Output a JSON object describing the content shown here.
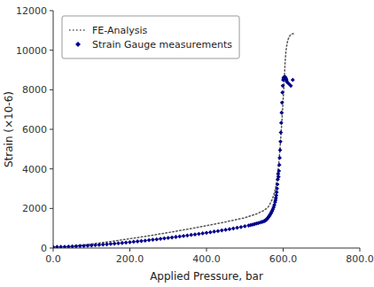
{
  "chart_data": {
    "type": "line",
    "xlabel": "Applied Pressure, bar",
    "ylabel": "Strain (×10-6)",
    "xlim": [
      0.0,
      800.0
    ],
    "ylim": [
      0,
      12000
    ],
    "xticks": [
      {
        "value": 0.0,
        "label": "0.0"
      },
      {
        "value": 200.0,
        "label": "200.0"
      },
      {
        "value": 400.0,
        "label": "400.0"
      },
      {
        "value": 600.0,
        "label": "600.0"
      },
      {
        "value": 800.0,
        "label": "800.0"
      }
    ],
    "yticks": [
      0,
      2000,
      4000,
      6000,
      8000,
      10000,
      12000
    ],
    "grid": false,
    "legend": "upper left",
    "series": [
      {
        "name": "FE-Analysis",
        "type": "line",
        "line_style": "dotted",
        "color": "#555555",
        "x": [
          0,
          50,
          100,
          150,
          200,
          250,
          300,
          350,
          400,
          450,
          500,
          530,
          550,
          560,
          565,
          570,
          575,
          580,
          583,
          585,
          587,
          589,
          591,
          593,
          595,
          597,
          599,
          601,
          603,
          605,
          607,
          609,
          611,
          613,
          615,
          617,
          619,
          621,
          623,
          625,
          627,
          628,
          629,
          630
        ],
        "values": [
          50,
          90,
          200,
          330,
          470,
          620,
          780,
          950,
          1130,
          1320,
          1530,
          1720,
          1900,
          2050,
          2200,
          2400,
          2650,
          3000,
          3350,
          3650,
          4000,
          4400,
          4850,
          5350,
          5900,
          6500,
          7150,
          7850,
          8580,
          9350,
          9900,
          10200,
          10400,
          10550,
          10650,
          10720,
          10770,
          10800,
          10820,
          10830,
          10835,
          10838,
          10839,
          10840
        ]
      },
      {
        "name": "Strain Gauge measurements",
        "type": "scatter",
        "marker": "diamond",
        "color": "#00008B",
        "x": [
          0,
          10,
          20,
          30,
          40,
          50,
          60,
          70,
          80,
          90,
          100,
          110,
          120,
          130,
          140,
          150,
          160,
          170,
          180,
          190,
          200,
          210,
          220,
          230,
          240,
          250,
          260,
          270,
          280,
          290,
          300,
          310,
          320,
          330,
          340,
          350,
          360,
          370,
          380,
          390,
          400,
          410,
          420,
          430,
          440,
          450,
          460,
          470,
          480,
          490,
          500,
          510,
          515,
          520,
          525,
          530,
          535,
          540,
          545,
          550,
          553,
          555,
          557,
          559,
          561,
          563,
          565,
          567,
          569,
          571,
          573,
          575,
          577,
          579,
          580,
          581,
          582,
          583,
          584,
          585,
          586,
          587,
          588,
          589,
          590,
          591,
          592,
          593,
          594,
          595,
          596,
          597,
          598,
          599,
          600,
          601,
          602,
          603,
          604,
          605,
          606,
          607,
          608,
          609,
          610,
          615,
          620,
          625
        ],
        "values": [
          50,
          55,
          60,
          65,
          70,
          80,
          90,
          100,
          110,
          120,
          135,
          148,
          160,
          175,
          190,
          210,
          225,
          240,
          258,
          275,
          295,
          315,
          335,
          355,
          375,
          398,
          420,
          442,
          465,
          488,
          512,
          535,
          560,
          585,
          610,
          635,
          662,
          688,
          715,
          742,
          770,
          800,
          830,
          860,
          890,
          922,
          955,
          990,
          1025,
          1062,
          1100,
          1140,
          1162,
          1185,
          1210,
          1235,
          1262,
          1290,
          1320,
          1355,
          1385,
          1415,
          1450,
          1490,
          1540,
          1600,
          1660,
          1720,
          1790,
          1870,
          1960,
          2060,
          2180,
          2320,
          2420,
          2530,
          2660,
          2820,
          3010,
          3220,
          3470,
          3750,
          3600,
          3900,
          4200,
          4560,
          4950,
          5380,
          5840,
          6330,
          6840,
          7350,
          7860,
          8200,
          8500,
          8600,
          8620,
          8640,
          8650,
          8640,
          8610,
          8570,
          8520,
          8460,
          8390,
          8300,
          8200,
          8500
        ]
      }
    ]
  }
}
